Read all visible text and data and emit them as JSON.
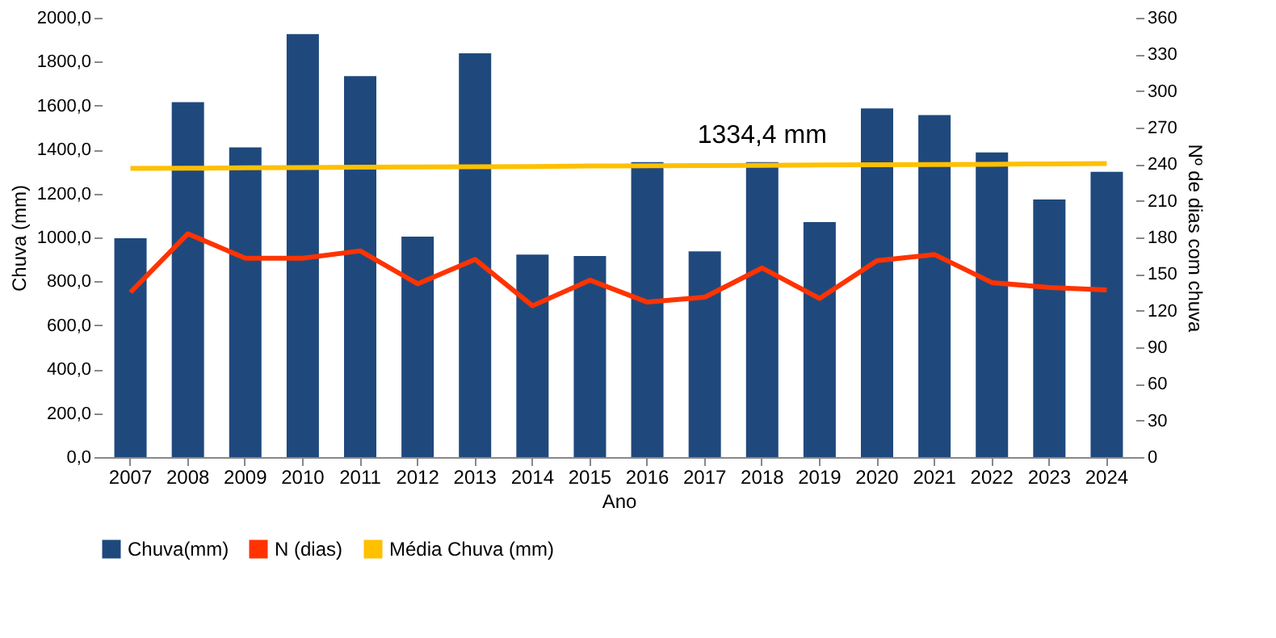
{
  "chart_data": {
    "type": "bar",
    "xlabel": "Ano",
    "ylabel": "Chuva (mm)",
    "y2label": "Nº de dias com chuva",
    "categories": [
      "2007",
      "2008",
      "2009",
      "2010",
      "2011",
      "2012",
      "2013",
      "2014",
      "2015",
      "2016",
      "2017",
      "2018",
      "2019",
      "2020",
      "2021",
      "2022",
      "2023",
      "2024"
    ],
    "series": [
      {
        "name": "Chuva(mm)",
        "color": "#1f497d",
        "values": [
          996,
          1616,
          1410,
          1926,
          1734,
          1004,
          1838,
          922,
          915,
          1343,
          937,
          1343,
          1070,
          1587,
          1557,
          1387,
          1173,
          1299
        ]
      },
      {
        "name": "N (dias)",
        "type": "line",
        "axis": "y2",
        "color": "#ff3300",
        "values": [
          135,
          183,
          163,
          163,
          169,
          142,
          162,
          124,
          145,
          127,
          131,
          155,
          130,
          161,
          166,
          143,
          139,
          137
        ]
      },
      {
        "name": "Média Chuva (mm)",
        "type": "line",
        "color": "#ffc000",
        "values": [
          1314,
          1315,
          1317,
          1318,
          1320,
          1321,
          1322,
          1323,
          1325,
          1326,
          1327,
          1328,
          1330,
          1331,
          1332,
          1333,
          1335,
          1336
        ]
      }
    ],
    "ylim": [
      0,
      2000
    ],
    "yticks": [
      {
        "value": 0,
        "label": "0,0"
      },
      {
        "value": 200,
        "label": "200,0"
      },
      {
        "value": 400,
        "label": "400,0"
      },
      {
        "value": 600,
        "label": "600,0"
      },
      {
        "value": 800,
        "label": "800,0"
      },
      {
        "value": 1000,
        "label": "1000,0"
      },
      {
        "value": 1200,
        "label": "1200,0"
      },
      {
        "value": 1400,
        "label": "1400,0"
      },
      {
        "value": 1600,
        "label": "1600,0"
      },
      {
        "value": 1800,
        "label": "1800,0"
      },
      {
        "value": 2000,
        "label": "2000,0"
      }
    ],
    "y2lim": [
      0,
      360
    ],
    "y2ticks": [
      0,
      30,
      60,
      90,
      120,
      150,
      180,
      210,
      240,
      270,
      300,
      330,
      360
    ],
    "annotations": [
      {
        "text": "1334,4 mm",
        "x": "2018",
        "y": 1334.4
      }
    ],
    "grid": false,
    "legend": "bottom",
    "line_style": "solid",
    "marker": "none"
  }
}
